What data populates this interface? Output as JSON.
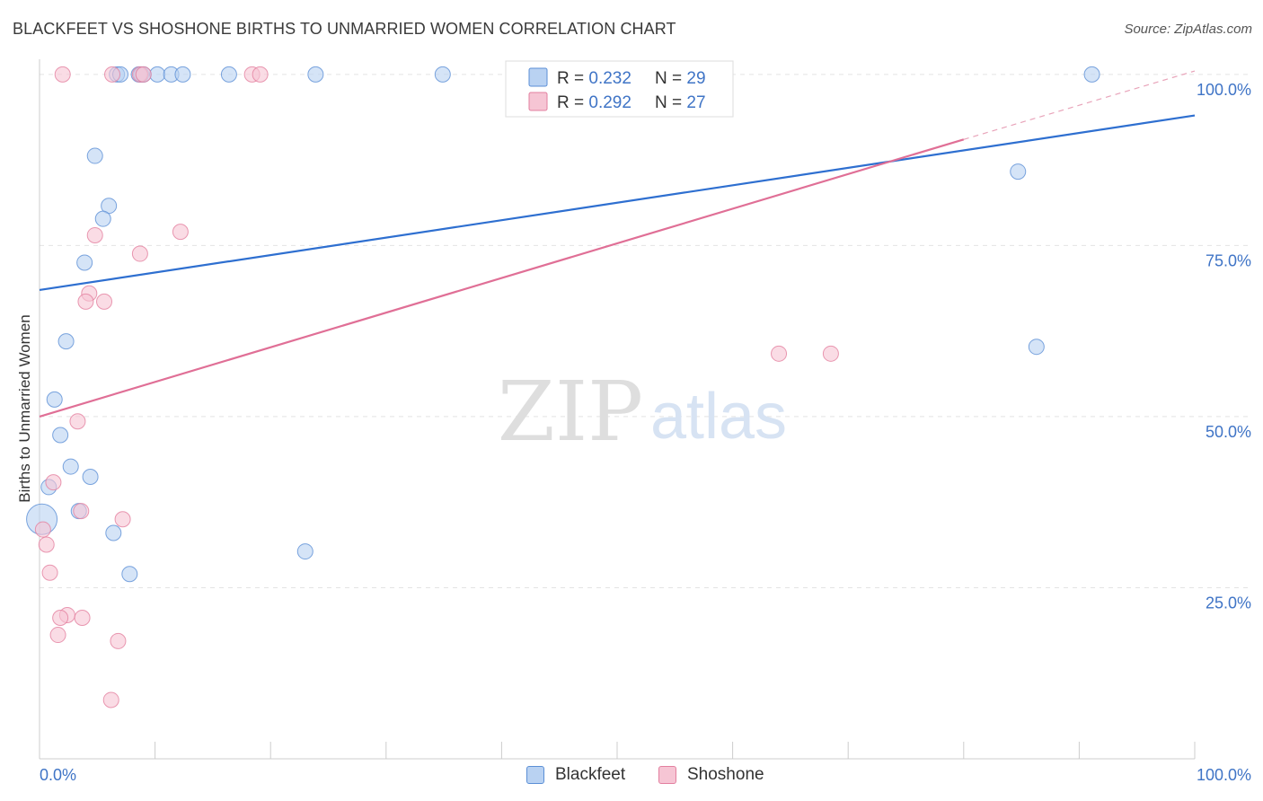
{
  "title": "BLACKFEET VS SHOSHONE BIRTHS TO UNMARRIED WOMEN CORRELATION CHART",
  "source": "Source: ZipAtlas.com",
  "watermark": {
    "zip": "ZIP",
    "atlas": "atlas"
  },
  "chart_data": {
    "type": "scatter",
    "title": "BLACKFEET VS SHOSHONE BIRTHS TO UNMARRIED WOMEN CORRELATION CHART",
    "xlabel": "",
    "ylabel": "Births to Unmarried Women",
    "xlim": [
      0,
      100
    ],
    "ylim": [
      0,
      103
    ],
    "x_tick_labels": {
      "left": "0.0%",
      "right": "100.0%"
    },
    "y_ticks": [
      {
        "value": 25,
        "label": "25.0%"
      },
      {
        "value": 50,
        "label": "50.0%"
      },
      {
        "value": 75,
        "label": "75.0%"
      },
      {
        "value": 100,
        "label": "100.0%"
      }
    ],
    "grid": true,
    "legend_position": "top-center",
    "series": [
      {
        "name": "Blackfeet",
        "color": "#5b8fd6",
        "fill": "#b9d2f2",
        "R": "0.232",
        "N": "29",
        "r_label": "R = ",
        "n_label": "N = ",
        "trend": {
          "x0": 0,
          "y0": 68.5,
          "x1": 100,
          "y1": 94
        },
        "points": [
          [
            6.7,
            100
          ],
          [
            7.0,
            100
          ],
          [
            8.6,
            100
          ],
          [
            8.8,
            100
          ],
          [
            9.0,
            100
          ],
          [
            10.2,
            100
          ],
          [
            11.4,
            100
          ],
          [
            12.4,
            100
          ],
          [
            16.4,
            100
          ],
          [
            23.9,
            100
          ],
          [
            34.9,
            100
          ],
          [
            91.1,
            100
          ],
          [
            4.8,
            88.1
          ],
          [
            6.0,
            80.8
          ],
          [
            5.5,
            78.9
          ],
          [
            84.7,
            85.8
          ],
          [
            3.9,
            72.5
          ],
          [
            2.3,
            61.0
          ],
          [
            1.3,
            52.5
          ],
          [
            86.3,
            60.2
          ],
          [
            1.8,
            47.3
          ],
          [
            2.7,
            42.7
          ],
          [
            4.4,
            41.2
          ],
          [
            0.8,
            39.7
          ],
          [
            0.2,
            35.0
          ],
          [
            3.4,
            36.2
          ],
          [
            6.4,
            33.0
          ],
          [
            23.0,
            30.3
          ],
          [
            7.8,
            27.0
          ]
        ]
      },
      {
        "name": "Shoshone",
        "color": "#e37f9f",
        "fill": "#f6c5d4",
        "R": "0.292",
        "N": "27",
        "r_label": "R = ",
        "n_label": "N = ",
        "trend": {
          "x0": 0,
          "y0": 50.0,
          "x1": 80,
          "y1": 90.5
        },
        "trend_dashed": {
          "x0": 80,
          "y0": 90.5,
          "x1": 100,
          "y1": 100.5
        },
        "points": [
          [
            2.0,
            100
          ],
          [
            6.3,
            100
          ],
          [
            8.7,
            100
          ],
          [
            9.0,
            100
          ],
          [
            18.4,
            100
          ],
          [
            19.1,
            100
          ],
          [
            4.8,
            76.5
          ],
          [
            12.2,
            77.0
          ],
          [
            8.7,
            73.8
          ],
          [
            4.3,
            68.0
          ],
          [
            4.0,
            66.8
          ],
          [
            5.6,
            66.8
          ],
          [
            64.0,
            59.2
          ],
          [
            68.5,
            59.2
          ],
          [
            3.3,
            49.3
          ],
          [
            1.2,
            40.4
          ],
          [
            3.6,
            36.2
          ],
          [
            7.2,
            35.0
          ],
          [
            0.3,
            33.5
          ],
          [
            0.6,
            31.3
          ],
          [
            0.9,
            27.2
          ],
          [
            2.4,
            21.0
          ],
          [
            1.8,
            20.6
          ],
          [
            3.7,
            20.6
          ],
          [
            1.6,
            18.1
          ],
          [
            6.8,
            17.2
          ],
          [
            6.2,
            8.6
          ]
        ]
      }
    ]
  }
}
